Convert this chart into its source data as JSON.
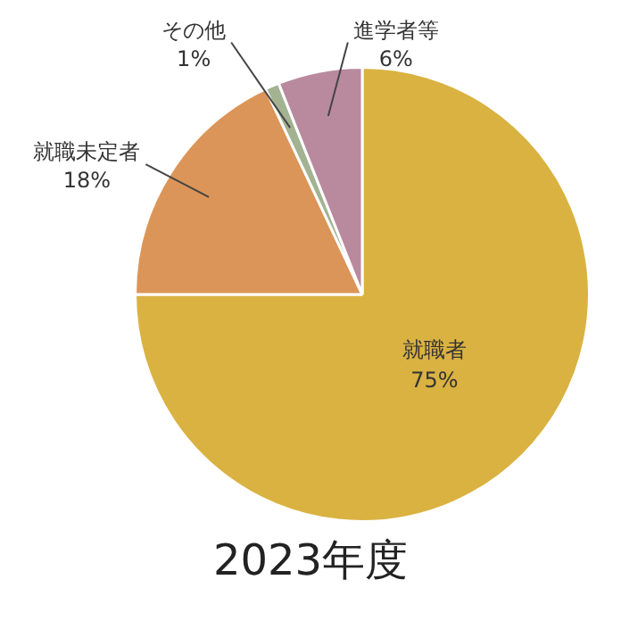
{
  "chart_data": {
    "type": "pie",
    "title": "2023年度",
    "categories": [
      "就職者",
      "就職未定者",
      "その他",
      "進学者等"
    ],
    "values": [
      75,
      18,
      1,
      6
    ],
    "colors": [
      "#dab241",
      "#dc9558",
      "#a3b392",
      "#b98a9e"
    ],
    "value_labels": [
      "75%",
      "18%",
      "1%",
      "6%"
    ],
    "legend": false
  }
}
